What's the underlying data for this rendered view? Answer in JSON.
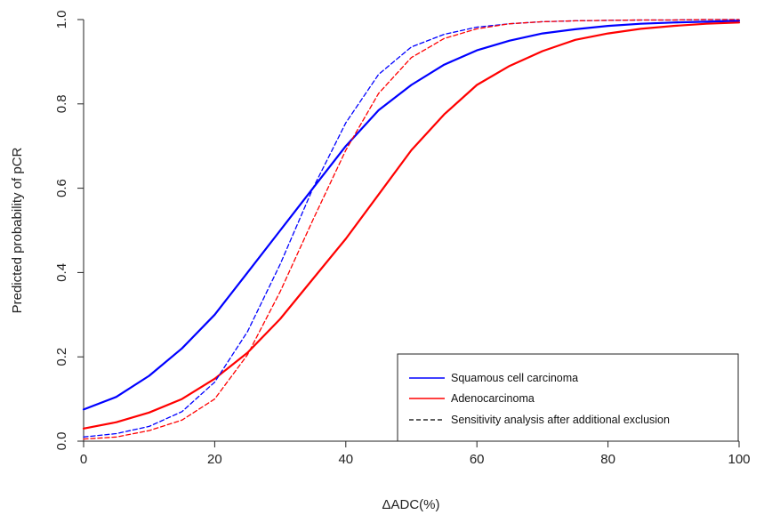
{
  "chart_data": {
    "type": "line",
    "title": "",
    "xlabel": "ΔADC(%)",
    "ylabel": "Predicted probability of pCR",
    "xlim": [
      0,
      100
    ],
    "ylim": [
      0,
      1
    ],
    "x_ticks": [
      "0",
      "20",
      "40",
      "60",
      "80",
      "100"
    ],
    "y_ticks": [
      "0.0",
      "0.2",
      "0.4",
      "0.6",
      "0.8",
      "1.0"
    ],
    "grid": false,
    "legend_position": "bottom-right",
    "legend": [
      {
        "label": "Squamous cell carcinoma",
        "color": "#0000ff",
        "style": "solid"
      },
      {
        "label": "Adenocarcinoma",
        "color": "#ff0000",
        "style": "solid"
      },
      {
        "label": "Sensitivity analysis after additional exclusion",
        "color": "#000000",
        "style": "dashed"
      }
    ],
    "x": [
      0,
      5,
      10,
      15,
      20,
      25,
      30,
      35,
      40,
      45,
      50,
      55,
      60,
      65,
      70,
      75,
      80,
      85,
      90,
      95,
      100
    ],
    "series": [
      {
        "name": "Squamous cell carcinoma",
        "color": "#0000ff",
        "style": "solid",
        "values": [
          0.075,
          0.105,
          0.155,
          0.22,
          0.3,
          0.4,
          0.5,
          0.6,
          0.7,
          0.785,
          0.845,
          0.893,
          0.927,
          0.95,
          0.967,
          0.977,
          0.985,
          0.99,
          0.993,
          0.995,
          0.997
        ]
      },
      {
        "name": "Adenocarcinoma",
        "color": "#ff0000",
        "style": "solid",
        "values": [
          0.03,
          0.045,
          0.068,
          0.1,
          0.148,
          0.21,
          0.29,
          0.385,
          0.48,
          0.585,
          0.69,
          0.775,
          0.845,
          0.89,
          0.925,
          0.952,
          0.967,
          0.978,
          0.985,
          0.99,
          0.993
        ]
      },
      {
        "name": "Squamous cell carcinoma",
        "color": "#0000ff",
        "style": "dashed",
        "values": [
          0.01,
          0.018,
          0.035,
          0.07,
          0.14,
          0.26,
          0.42,
          0.6,
          0.755,
          0.87,
          0.935,
          0.965,
          0.982,
          0.99,
          0.995,
          0.997,
          0.998,
          0.999,
          0.999,
          1.0,
          1.0
        ]
      },
      {
        "name": "Adenocarcinoma",
        "color": "#ff0000",
        "style": "dashed",
        "values": [
          0.005,
          0.01,
          0.025,
          0.05,
          0.1,
          0.205,
          0.355,
          0.525,
          0.69,
          0.825,
          0.91,
          0.955,
          0.978,
          0.99,
          0.995,
          0.997,
          0.998,
          0.999,
          0.999,
          1.0,
          1.0
        ]
      }
    ]
  }
}
